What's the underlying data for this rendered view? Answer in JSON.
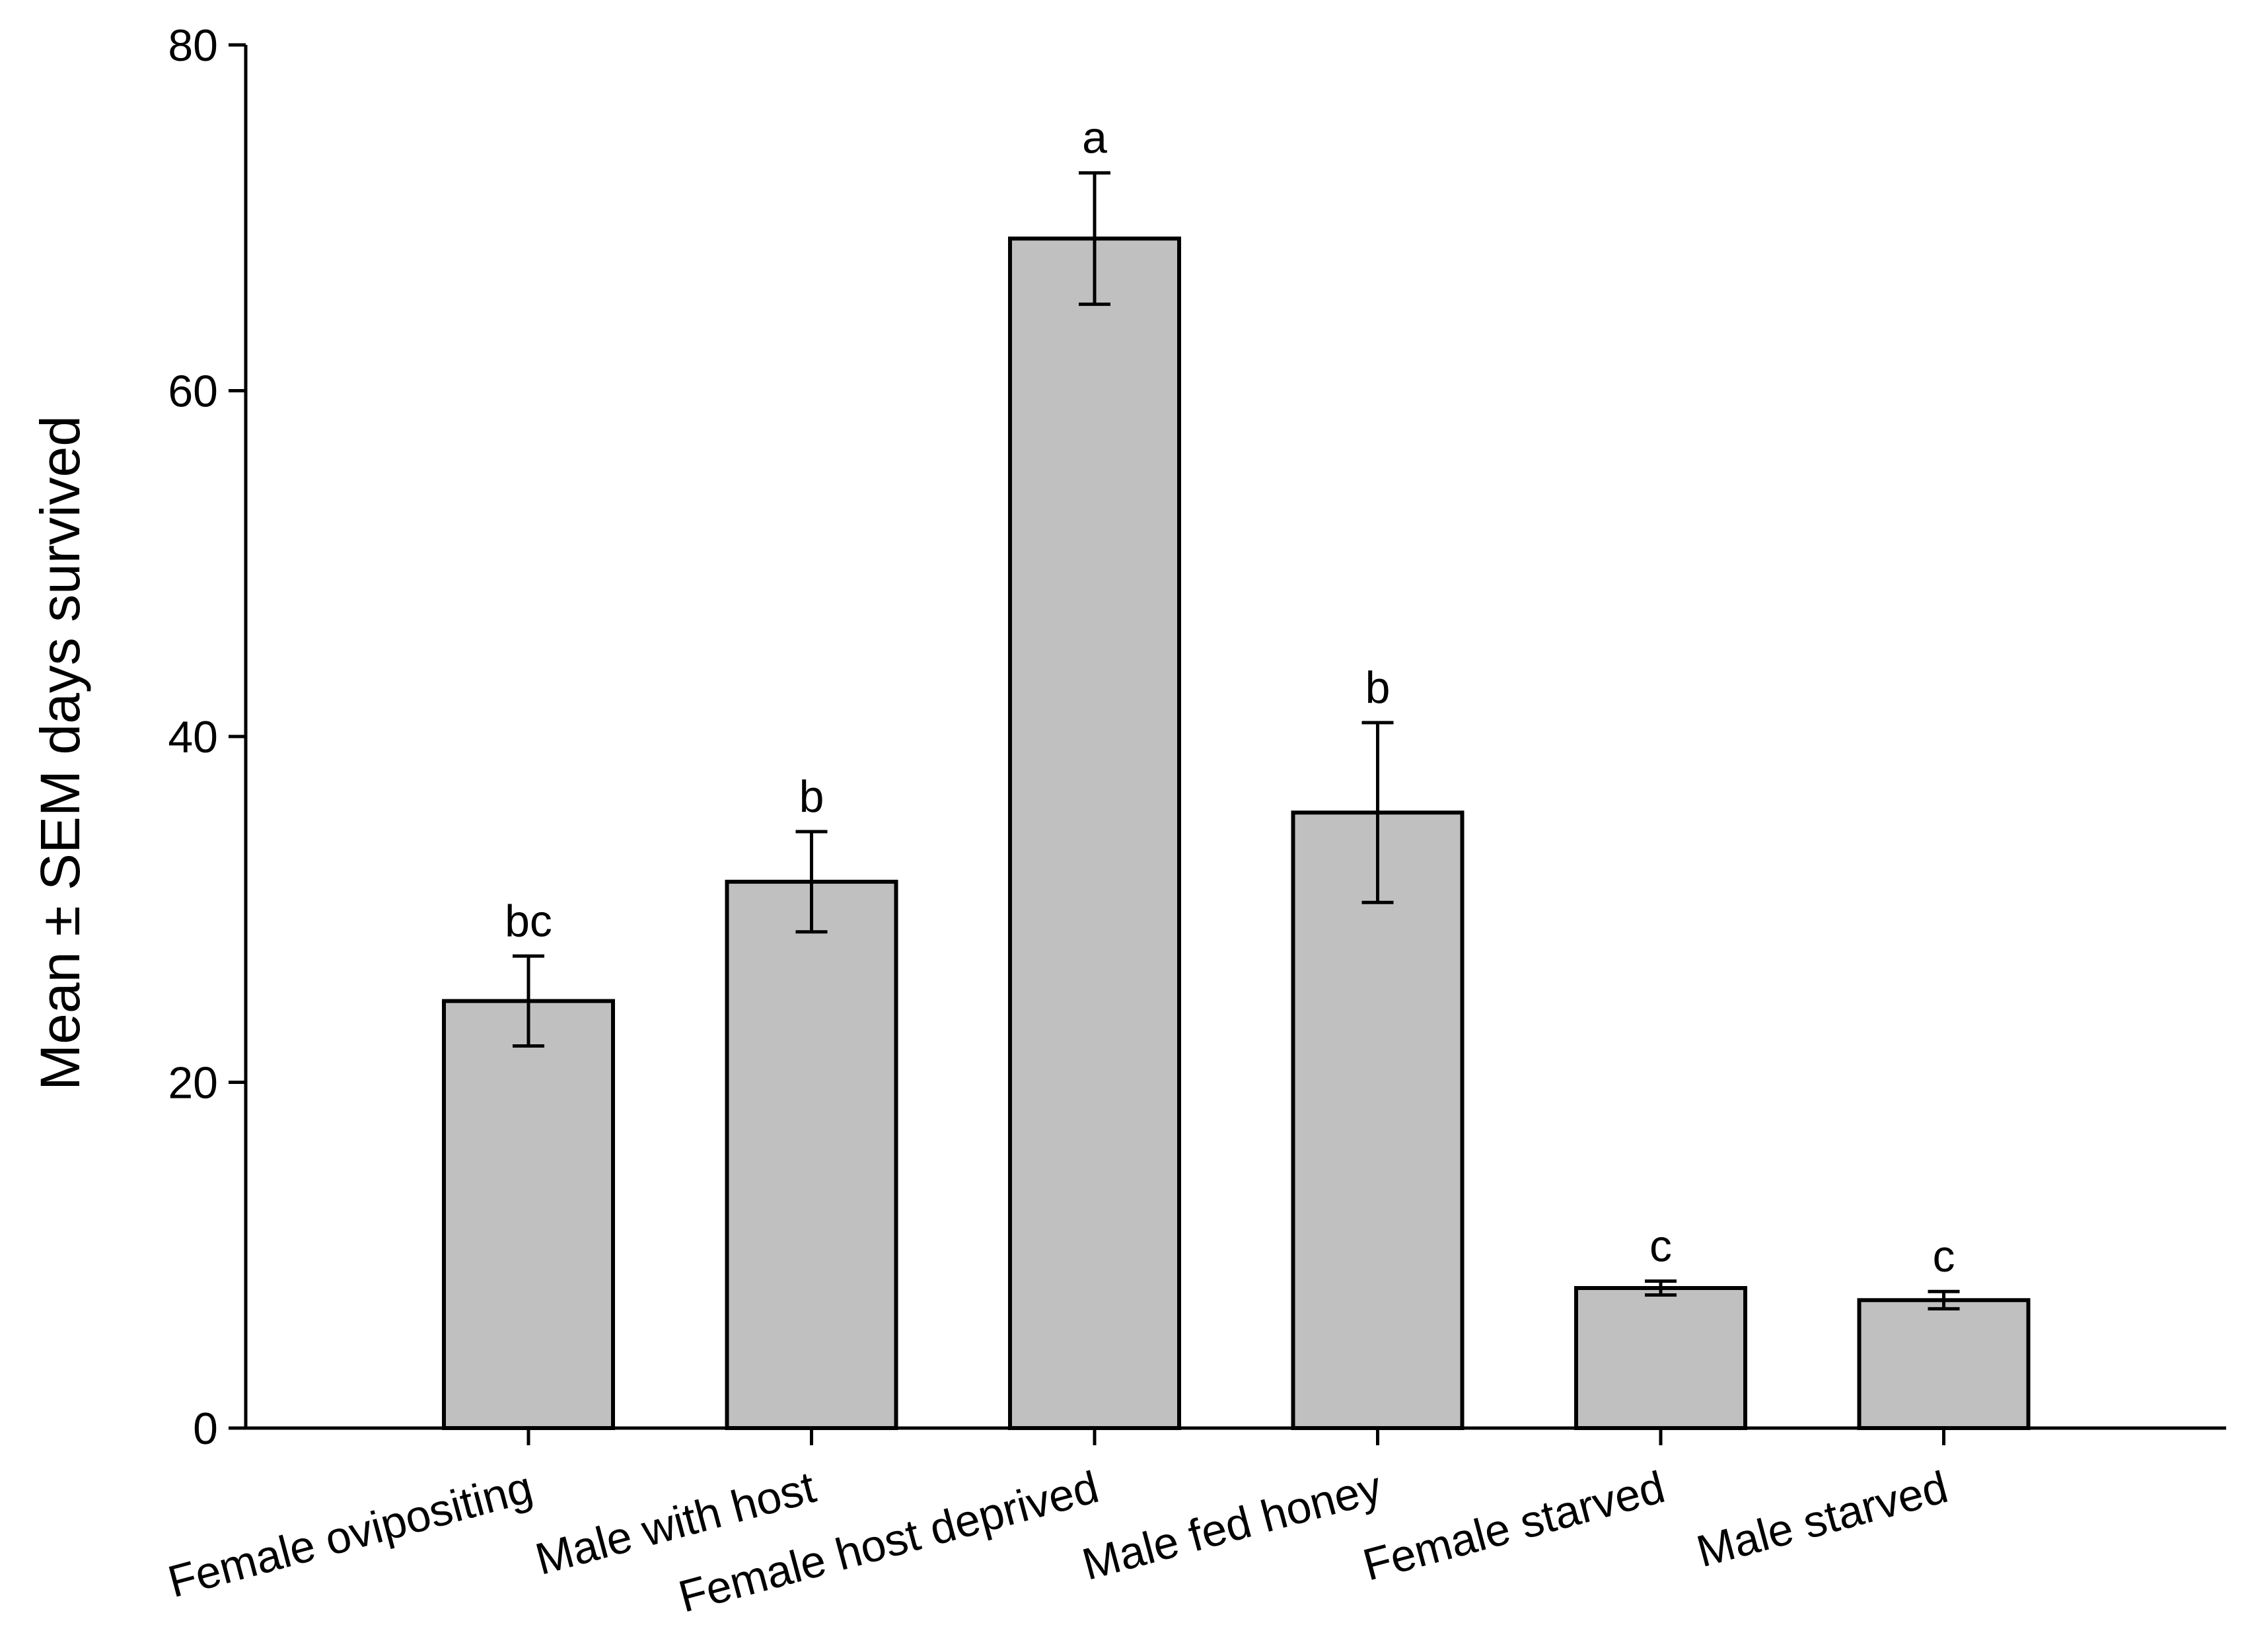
{
  "chart_data": {
    "type": "bar",
    "title": "",
    "xlabel": "",
    "ylabel": "Mean ± SEM days survived",
    "ylim": [
      0,
      80
    ],
    "yticks": [
      0,
      20,
      40,
      60,
      80
    ],
    "grid": false,
    "categories": [
      "Female ovipositing",
      "Male with host",
      "Female host deprived",
      "Male fed honey",
      "Female starved",
      "Male starved"
    ],
    "values": [
      24.7,
      31.6,
      68.8,
      35.6,
      8.1,
      7.4
    ],
    "errors": [
      2.6,
      2.9,
      3.8,
      5.2,
      0.4,
      0.5
    ],
    "significance_labels": [
      "bc",
      "b",
      "a",
      "b",
      "c",
      "c"
    ],
    "bar_color": "#c0c0c0",
    "edge_color": "#000000"
  }
}
